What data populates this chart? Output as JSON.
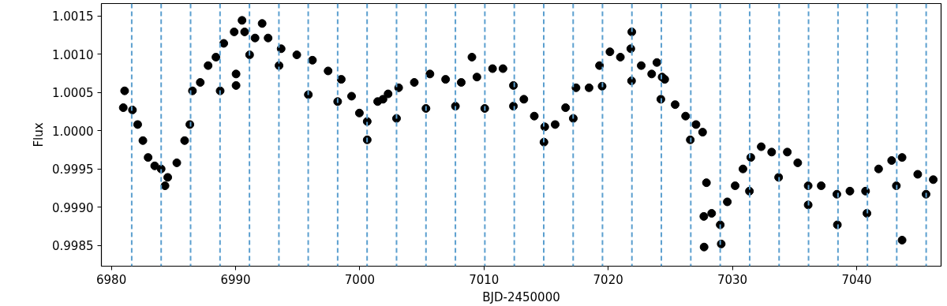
{
  "chart_data": {
    "type": "scatter",
    "xlabel": "BJD-2450000",
    "ylabel": "Flux",
    "xlim": [
      6979.2,
      7046.8
    ],
    "xticks": [
      6980,
      6990,
      7000,
      7010,
      7020,
      7030,
      7040
    ],
    "ylim": [
      0.99823,
      1.00166
    ],
    "yticks": [
      {
        "value": 0.9985,
        "label": "0.9985"
      },
      {
        "value": 0.999,
        "label": "0.9990"
      },
      {
        "value": 0.9995,
        "label": "0.9995"
      },
      {
        "value": 1.0,
        "label": "1.0000"
      },
      {
        "value": 1.0005,
        "label": "1.0005"
      },
      {
        "value": 1.001,
        "label": "1.0010"
      },
      {
        "value": 1.0015,
        "label": "1.0015"
      }
    ],
    "grid": false,
    "marker": "circle",
    "series": [
      {
        "color": "#000000",
        "x": [
          6980.96,
          6981.07,
          6981.7,
          6982.12,
          6982.54,
          6982.96,
          6983.49,
          6984.01,
          6984.32,
          6984.54,
          6985.27,
          6985.9,
          6986.32,
          6986.53,
          6987.16,
          6987.79,
          6988.42,
          6988.76,
          6989.05,
          6989.89,
          6990.04,
          6990.04,
          6990.52,
          6990.73,
          6991.13,
          6991.57,
          6992.14,
          6992.62,
          6993.5,
          6993.67,
          6994.93,
          6995.86,
          6996.19,
          6997.45,
          6998.22,
          6998.51,
          6999.34,
          6999.97,
          7000.6,
          7000.6,
          7001.44,
          7001.87,
          7002.28,
          7002.96,
          7003.13,
          7004.39,
          7005.33,
          7005.65,
          7006.91,
          7007.7,
          7008.17,
          7009.03,
          7009.43,
          7010.06,
          7010.69,
          7011.53,
          7012.37,
          7012.37,
          7013.21,
          7014.05,
          7014.83,
          7014.89,
          7015.73,
          7016.57,
          7017.19,
          7017.41,
          7018.46,
          7019.3,
          7019.51,
          7020.14,
          7020.98,
          7021.82,
          7021.88,
          7021.9,
          7022.66,
          7023.5,
          7023.92,
          7024.24,
          7024.34,
          7024.55,
          7025.39,
          7026.23,
          7026.61,
          7027.07,
          7027.6,
          7027.7,
          7027.72,
          7027.91,
          7028.33,
          7029.02,
          7029.1,
          7029.59,
          7030.22,
          7030.85,
          7031.37,
          7031.48,
          7032.32,
          7033.16,
          7033.72,
          7034.42,
          7035.26,
          7036.1,
          7036.1,
          7037.15,
          7038.41,
          7038.45,
          7039.46,
          7040.72,
          7040.83,
          7041.77,
          7042.82,
          7043.2,
          7043.66,
          7043.66,
          7044.92,
          7045.59,
          7046.17
        ],
        "values": [
          1.0003,
          1.00052,
          1.00027,
          1.00008,
          0.99987,
          0.99965,
          0.99954,
          0.9995,
          0.99928,
          0.99939,
          0.99958,
          0.99987,
          1.00008,
          1.00052,
          1.00063,
          1.00085,
          1.00096,
          1.00052,
          1.00114,
          1.00129,
          1.00059,
          1.00074,
          1.00144,
          1.00129,
          1.00099,
          1.00121,
          1.0014,
          1.00121,
          1.00085,
          1.00107,
          1.00099,
          1.00047,
          1.00092,
          1.00078,
          1.00038,
          1.00067,
          1.00045,
          1.00023,
          1.00012,
          0.99988,
          1.00038,
          1.00041,
          1.00048,
          1.00016,
          1.00056,
          1.00063,
          1.00029,
          1.00074,
          1.00067,
          1.00032,
          1.00063,
          1.00096,
          1.0007,
          1.00029,
          1.00081,
          1.00081,
          1.00059,
          1.00032,
          1.00041,
          1.00019,
          0.99985,
          1.00005,
          1.00008,
          1.0003,
          1.00016,
          1.00056,
          1.00056,
          1.00085,
          1.00058,
          1.00103,
          1.00096,
          1.00107,
          1.00065,
          1.00129,
          1.00085,
          1.00074,
          1.00089,
          1.00041,
          1.0007,
          1.00067,
          1.00034,
          1.00019,
          0.99988,
          1.00008,
          0.99998,
          0.99888,
          0.99848,
          0.99932,
          0.99892,
          0.99877,
          0.99852,
          0.99907,
          0.99928,
          0.9995,
          0.99921,
          0.99965,
          0.99979,
          0.99972,
          0.99939,
          0.99972,
          0.99958,
          0.99928,
          0.99903,
          0.99928,
          0.99917,
          0.99877,
          0.99921,
          0.99921,
          0.99892,
          0.9995,
          0.99961,
          0.99928,
          0.99965,
          0.99857,
          0.99943,
          0.99917,
          0.99936
        ]
      }
    ],
    "ref_lines": [
      {
        "axis": "x",
        "value": 6981.64,
        "color": "#5b9fcf",
        "line_style": "dashed"
      },
      {
        "axis": "x",
        "value": 6984.01,
        "color": "#5b9fcf",
        "line_style": "dashed"
      },
      {
        "axis": "x",
        "value": 6986.38,
        "color": "#5b9fcf",
        "line_style": "dashed"
      },
      {
        "axis": "x",
        "value": 6988.75,
        "color": "#5b9fcf",
        "line_style": "dashed"
      },
      {
        "axis": "x",
        "value": 6991.12,
        "color": "#5b9fcf",
        "line_style": "dashed"
      },
      {
        "axis": "x",
        "value": 6993.49,
        "color": "#5b9fcf",
        "line_style": "dashed"
      },
      {
        "axis": "x",
        "value": 6995.85,
        "color": "#5b9fcf",
        "line_style": "dashed"
      },
      {
        "axis": "x",
        "value": 6998.22,
        "color": "#5b9fcf",
        "line_style": "dashed"
      },
      {
        "axis": "x",
        "value": 7000.59,
        "color": "#5b9fcf",
        "line_style": "dashed"
      },
      {
        "axis": "x",
        "value": 7002.96,
        "color": "#5b9fcf",
        "line_style": "dashed"
      },
      {
        "axis": "x",
        "value": 7005.33,
        "color": "#5b9fcf",
        "line_style": "dashed"
      },
      {
        "axis": "x",
        "value": 7007.7,
        "color": "#5b9fcf",
        "line_style": "dashed"
      },
      {
        "axis": "x",
        "value": 7010.07,
        "color": "#5b9fcf",
        "line_style": "dashed"
      },
      {
        "axis": "x",
        "value": 7012.44,
        "color": "#5b9fcf",
        "line_style": "dashed"
      },
      {
        "axis": "x",
        "value": 7014.81,
        "color": "#5b9fcf",
        "line_style": "dashed"
      },
      {
        "axis": "x",
        "value": 7017.18,
        "color": "#5b9fcf",
        "line_style": "dashed"
      },
      {
        "axis": "x",
        "value": 7019.54,
        "color": "#5b9fcf",
        "line_style": "dashed"
      },
      {
        "axis": "x",
        "value": 7021.91,
        "color": "#5b9fcf",
        "line_style": "dashed"
      },
      {
        "axis": "x",
        "value": 7024.28,
        "color": "#5b9fcf",
        "line_style": "dashed"
      },
      {
        "axis": "x",
        "value": 7026.65,
        "color": "#5b9fcf",
        "line_style": "dashed"
      },
      {
        "axis": "x",
        "value": 7029.02,
        "color": "#5b9fcf",
        "line_style": "dashed"
      },
      {
        "axis": "x",
        "value": 7031.39,
        "color": "#5b9fcf",
        "line_style": "dashed"
      },
      {
        "axis": "x",
        "value": 7033.76,
        "color": "#5b9fcf",
        "line_style": "dashed"
      },
      {
        "axis": "x",
        "value": 7036.13,
        "color": "#5b9fcf",
        "line_style": "dashed"
      },
      {
        "axis": "x",
        "value": 7038.5,
        "color": "#5b9fcf",
        "line_style": "dashed"
      },
      {
        "axis": "x",
        "value": 7040.87,
        "color": "#5b9fcf",
        "line_style": "dashed"
      },
      {
        "axis": "x",
        "value": 7043.23,
        "color": "#5b9fcf",
        "line_style": "dashed"
      },
      {
        "axis": "x",
        "value": 7045.6,
        "color": "#5b9fcf",
        "line_style": "dashed"
      }
    ]
  }
}
